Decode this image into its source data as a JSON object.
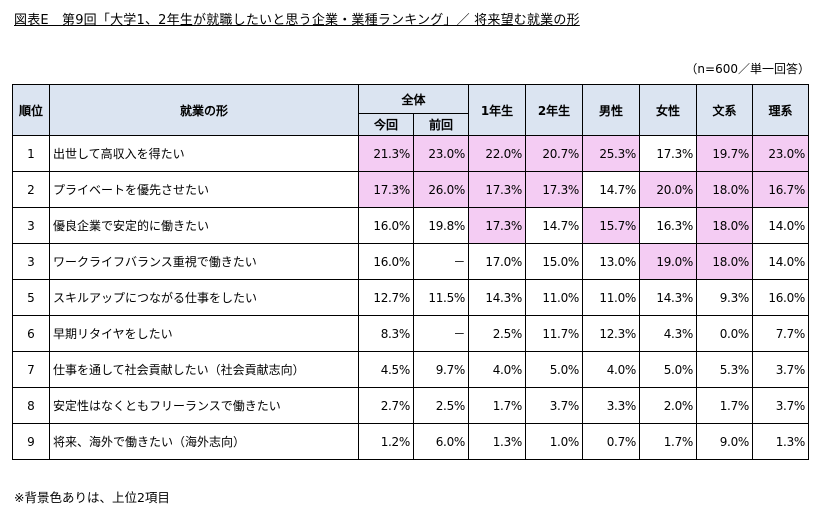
{
  "title": "図表E　第9回「大学1、2年生が就職したいと思う企業・業種ランキング」／ 将来望む就業の形",
  "sample_note": "（n=600／単一回答）",
  "footnote": "※背景色ありは、上位2項目",
  "headers": {
    "rank": "順位",
    "item": "就業の形",
    "overall": "全体",
    "current": "今回",
    "previous": "前回",
    "year1": "1年生",
    "year2": "2年生",
    "male": "男性",
    "female": "女性",
    "humanities": "文系",
    "science": "理系"
  },
  "highlight_color": "#f4ccf3",
  "rows": [
    {
      "rank": "1",
      "label": "出世して高収入を得たい",
      "values": [
        "21.3%",
        "23.0%",
        "22.0%",
        "20.7%",
        "25.3%",
        "17.3%",
        "19.7%",
        "23.0%"
      ],
      "highlight": [
        true,
        true,
        true,
        true,
        true,
        false,
        true,
        true
      ]
    },
    {
      "rank": "2",
      "label": "プライベートを優先させたい",
      "values": [
        "17.3%",
        "26.0%",
        "17.3%",
        "17.3%",
        "14.7%",
        "20.0%",
        "18.0%",
        "16.7%"
      ],
      "highlight": [
        true,
        true,
        true,
        true,
        false,
        true,
        true,
        true
      ]
    },
    {
      "rank": "3",
      "label": "優良企業で安定的に働きたい",
      "values": [
        "16.0%",
        "19.8%",
        "17.3%",
        "14.7%",
        "15.7%",
        "16.3%",
        "18.0%",
        "14.0%"
      ],
      "highlight": [
        false,
        false,
        true,
        false,
        true,
        false,
        true,
        false
      ]
    },
    {
      "rank": "3",
      "label": "ワークライフバランス重視で働きたい",
      "values": [
        "16.0%",
        "－",
        "17.0%",
        "15.0%",
        "13.0%",
        "19.0%",
        "18.0%",
        "14.0%"
      ],
      "highlight": [
        false,
        false,
        false,
        false,
        false,
        true,
        true,
        false
      ]
    },
    {
      "rank": "5",
      "label": "スキルアップにつながる仕事をしたい",
      "values": [
        "12.7%",
        "11.5%",
        "14.3%",
        "11.0%",
        "11.0%",
        "14.3%",
        "9.3%",
        "16.0%"
      ],
      "highlight": [
        false,
        false,
        false,
        false,
        false,
        false,
        false,
        false
      ]
    },
    {
      "rank": "6",
      "label": "早期リタイヤをしたい",
      "values": [
        "8.3%",
        "－",
        "2.5%",
        "11.7%",
        "12.3%",
        "4.3%",
        "0.0%",
        "7.7%"
      ],
      "highlight": [
        false,
        false,
        false,
        false,
        false,
        false,
        false,
        false
      ]
    },
    {
      "rank": "7",
      "label": "仕事を通して社会貢献したい（社会貢献志向）",
      "values": [
        "4.5%",
        "9.7%",
        "4.0%",
        "5.0%",
        "4.0%",
        "5.0%",
        "5.3%",
        "3.7%"
      ],
      "highlight": [
        false,
        false,
        false,
        false,
        false,
        false,
        false,
        false
      ]
    },
    {
      "rank": "8",
      "label": "安定性はなくともフリーランスで働きたい",
      "values": [
        "2.7%",
        "2.5%",
        "1.7%",
        "3.7%",
        "3.3%",
        "2.0%",
        "1.7%",
        "3.7%"
      ],
      "highlight": [
        false,
        false,
        false,
        false,
        false,
        false,
        false,
        false
      ]
    },
    {
      "rank": "9",
      "label": "将来、海外で働きたい（海外志向）",
      "values": [
        "1.2%",
        "6.0%",
        "1.3%",
        "1.0%",
        "0.7%",
        "1.7%",
        "9.0%",
        "1.3%"
      ],
      "highlight": [
        false,
        false,
        false,
        false,
        false,
        false,
        false,
        false
      ]
    }
  ]
}
